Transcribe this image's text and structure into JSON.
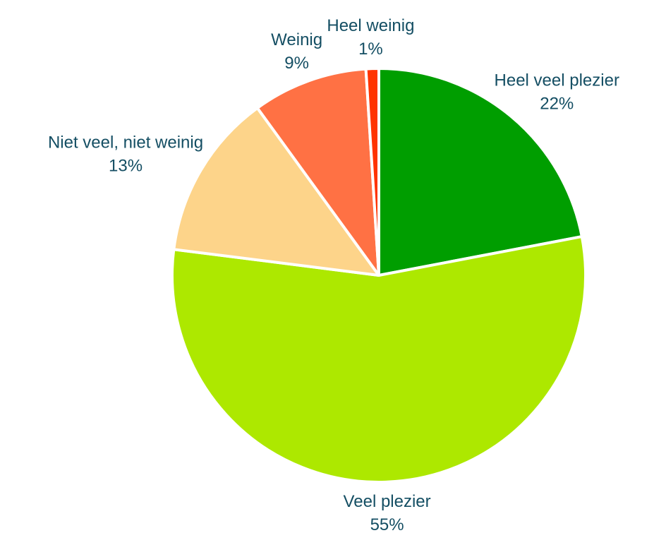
{
  "chart_data": {
    "type": "pie",
    "categories": [
      "Heel veel plezier",
      "Veel plezier",
      "Niet veel, niet weinig",
      "Weinig",
      "Heel weinig"
    ],
    "values": [
      22,
      55,
      13,
      9,
      1
    ],
    "value_labels": [
      "22%",
      "55%",
      "13%",
      "9%",
      "1%"
    ],
    "colors": [
      "#009e00",
      "#ade800",
      "#fdd48a",
      "#ff7144",
      "#ff3300"
    ]
  }
}
